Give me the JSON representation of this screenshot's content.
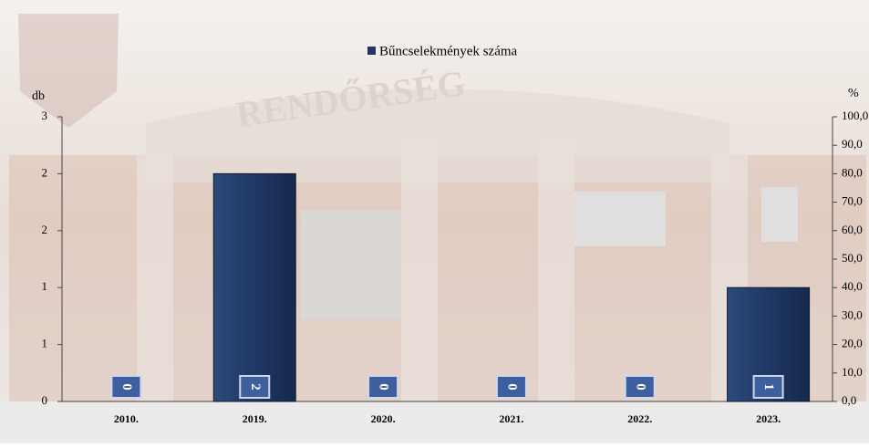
{
  "chart_data": {
    "type": "bar",
    "legend": "Bűncselekmények száma",
    "y_label": "db",
    "y2_label": "%",
    "categories": [
      "2010.",
      "2019.",
      "2020.",
      "2021.",
      "2022.",
      "2023."
    ],
    "series": [
      {
        "name": "Bűncselekmények száma",
        "color": "#1f3864",
        "values": [
          0,
          2,
          0,
          0,
          0,
          1
        ]
      }
    ],
    "ylim": [
      0,
      2.5
    ],
    "yticks": [
      0,
      {
        "value": 0.5,
        "label": "1"
      },
      1,
      {
        "value": 1.5,
        "label": "2"
      },
      2,
      {
        "value": 2.5,
        "label": "3"
      }
    ],
    "y2lim": [
      0,
      100
    ],
    "y2ticks": [
      {
        "value": 0,
        "label": "0,0"
      },
      {
        "value": 10,
        "label": "10,0"
      },
      {
        "value": 20,
        "label": "20,0"
      },
      {
        "value": 30,
        "label": "30,0"
      },
      {
        "value": 40,
        "label": "40,0"
      },
      {
        "value": 50,
        "label": "50,0"
      },
      {
        "value": 60,
        "label": "60,0"
      },
      {
        "value": 70,
        "label": "70,0"
      },
      {
        "value": 80,
        "label": "80,0"
      },
      {
        "value": 90,
        "label": "90,0"
      },
      {
        "value": 100,
        "label": "100,0"
      }
    ]
  }
}
